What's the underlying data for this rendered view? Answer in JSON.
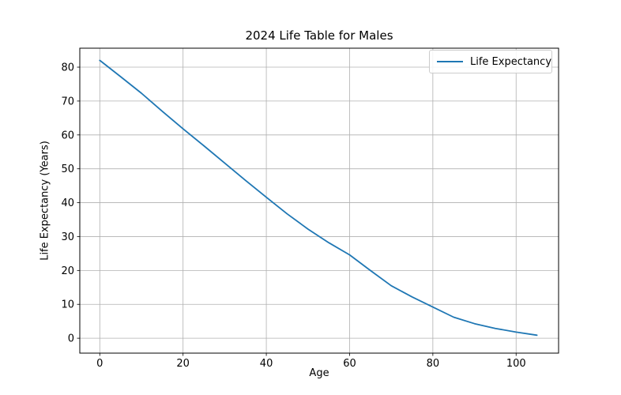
{
  "chart_data": {
    "type": "line",
    "title": "2024 Life Table for Males",
    "xlabel": "Age",
    "ylabel": "Life Expectancy (Years)",
    "grid": true,
    "legend_position": "upper right",
    "xlim": [
      -4.8,
      110.2
    ],
    "ylim": [
      -4.4,
      85.6
    ],
    "xticks": [
      0,
      20,
      40,
      60,
      80,
      100
    ],
    "yticks": [
      0,
      10,
      20,
      30,
      40,
      50,
      60,
      70,
      80
    ],
    "colors": {
      "line": "#1f77b4",
      "grid": "#b0b0b0",
      "spine": "#000000",
      "background": "#ffffff"
    },
    "series": [
      {
        "name": "Life Expectancy",
        "x": [
          0,
          5,
          10,
          15,
          20,
          25,
          30,
          35,
          40,
          45,
          50,
          55,
          60,
          65,
          70,
          75,
          80,
          85,
          90,
          95,
          100,
          105
        ],
        "y": [
          82.0,
          77.2,
          72.3,
          67.0,
          61.8,
          56.8,
          51.7,
          46.6,
          41.6,
          36.7,
          32.2,
          28.2,
          24.6,
          20.0,
          15.5,
          12.2,
          9.2,
          6.2,
          4.3,
          2.9,
          1.8,
          0.9
        ]
      }
    ]
  }
}
